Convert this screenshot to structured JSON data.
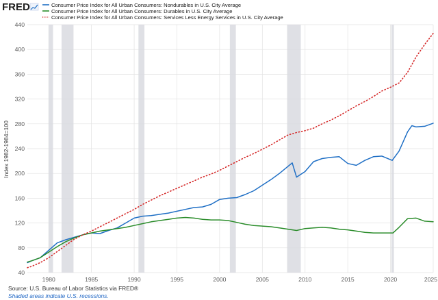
{
  "header": {
    "logo_text": "FRED",
    "logo_icon": "chart-line-icon"
  },
  "legend": {
    "items": [
      {
        "label": "Consumer Price Index for All Urban Consumers: Nondurables in U.S. City Average",
        "color": "#1f6fc5",
        "style": "solid"
      },
      {
        "label": "Consumer Price Index for All Urban Consumers: Durables in U.S. City Average",
        "color": "#2a8c2a",
        "style": "solid"
      },
      {
        "label": "Consumer Price Index for All Urban Consumers: Services Less Energy Services in U.S. City Average",
        "color": "#d52b2b",
        "style": "dotted"
      }
    ]
  },
  "footer": {
    "source": "Source: U.S. Bureau of Labor Statistics via FRED®",
    "note": "Shaded areas indicate U.S. recessions."
  },
  "chart_data": {
    "type": "line",
    "title": "",
    "xlabel": "",
    "ylabel": "Index 1982-1984=100",
    "xlim": [
      1977.5,
      2025.0
    ],
    "ylim": [
      40,
      440
    ],
    "yticks": [
      40,
      80,
      120,
      160,
      200,
      240,
      280,
      320,
      360,
      400,
      440
    ],
    "xticks": [
      1980,
      1985,
      1990,
      1995,
      2000,
      2005,
      2010,
      2015,
      2020,
      2025
    ],
    "grid": true,
    "legend_position": "top-left",
    "recessions": [
      [
        1980.0,
        1980.5
      ],
      [
        1981.5,
        1982.9
      ],
      [
        1990.5,
        1991.2
      ],
      [
        2001.2,
        2001.9
      ],
      [
        2007.9,
        2009.5
      ],
      [
        2020.1,
        2020.4
      ]
    ],
    "series": [
      {
        "name": "Consumer Price Index for All Urban Consumers: Nondurables in U.S. City Average",
        "color": "#1f6fc5",
        "style": "solid",
        "points": [
          [
            1977.5,
            56
          ],
          [
            1978,
            59
          ],
          [
            1979,
            64
          ],
          [
            1980,
            76
          ],
          [
            1981,
            88
          ],
          [
            1982,
            93
          ],
          [
            1983,
            97
          ],
          [
            1984,
            101
          ],
          [
            1985,
            104
          ],
          [
            1986,
            103
          ],
          [
            1987,
            108
          ],
          [
            1988,
            112
          ],
          [
            1989,
            120
          ],
          [
            1990,
            128
          ],
          [
            1991,
            131
          ],
          [
            1992,
            132
          ],
          [
            1993,
            134
          ],
          [
            1994,
            136
          ],
          [
            1995,
            139
          ],
          [
            1996,
            142
          ],
          [
            1997,
            145
          ],
          [
            1998,
            146
          ],
          [
            1999,
            150
          ],
          [
            2000,
            158
          ],
          [
            2001,
            160
          ],
          [
            2002,
            161
          ],
          [
            2003,
            166
          ],
          [
            2004,
            172
          ],
          [
            2005,
            181
          ],
          [
            2006,
            190
          ],
          [
            2007,
            200
          ],
          [
            2008.5,
            217
          ],
          [
            2009.0,
            194
          ],
          [
            2010,
            203
          ],
          [
            2011,
            219
          ],
          [
            2012,
            224
          ],
          [
            2013,
            226
          ],
          [
            2014,
            227
          ],
          [
            2015,
            216
          ],
          [
            2016,
            213
          ],
          [
            2017,
            221
          ],
          [
            2018,
            227
          ],
          [
            2019,
            228
          ],
          [
            2020.2,
            221
          ],
          [
            2021,
            236
          ],
          [
            2022,
            267
          ],
          [
            2022.5,
            277
          ],
          [
            2023,
            275
          ],
          [
            2024,
            276
          ],
          [
            2025,
            281
          ]
        ]
      },
      {
        "name": "Consumer Price Index for All Urban Consumers: Durables in U.S. City Average",
        "color": "#2a8c2a",
        "style": "solid",
        "points": [
          [
            1977.5,
            57
          ],
          [
            1978,
            59
          ],
          [
            1979,
            64
          ],
          [
            1980,
            73
          ],
          [
            1981,
            82
          ],
          [
            1982,
            90
          ],
          [
            1983,
            96
          ],
          [
            1984,
            101
          ],
          [
            1985,
            104
          ],
          [
            1986,
            107
          ],
          [
            1987,
            109
          ],
          [
            1988,
            111
          ],
          [
            1989,
            113
          ],
          [
            1990,
            116
          ],
          [
            1991,
            119
          ],
          [
            1992,
            122
          ],
          [
            1993,
            124
          ],
          [
            1994,
            126
          ],
          [
            1995,
            128
          ],
          [
            1996,
            129
          ],
          [
            1997,
            128
          ],
          [
            1998,
            126
          ],
          [
            1999,
            125
          ],
          [
            2000,
            125
          ],
          [
            2001,
            124
          ],
          [
            2002,
            121
          ],
          [
            2003,
            118
          ],
          [
            2004,
            116
          ],
          [
            2005,
            115
          ],
          [
            2006,
            114
          ],
          [
            2007,
            112
          ],
          [
            2008,
            110
          ],
          [
            2009,
            108
          ],
          [
            2010,
            111
          ],
          [
            2011,
            112
          ],
          [
            2012,
            113
          ],
          [
            2013,
            112
          ],
          [
            2014,
            110
          ],
          [
            2015,
            109
          ],
          [
            2016,
            107
          ],
          [
            2017,
            105
          ],
          [
            2018,
            104
          ],
          [
            2019,
            104
          ],
          [
            2020.3,
            104
          ],
          [
            2021,
            113
          ],
          [
            2022,
            127
          ],
          [
            2023,
            128
          ],
          [
            2024,
            123
          ],
          [
            2025,
            122
          ]
        ]
      },
      {
        "name": "Consumer Price Index for All Urban Consumers: Services Less Energy Services in U.S. City Average",
        "color": "#d52b2b",
        "style": "dotted",
        "points": [
          [
            1977.5,
            48
          ],
          [
            1978,
            50
          ],
          [
            1979,
            56
          ],
          [
            1980,
            64
          ],
          [
            1981,
            74
          ],
          [
            1982,
            84
          ],
          [
            1983,
            94
          ],
          [
            1984,
            101
          ],
          [
            1985,
            107
          ],
          [
            1986,
            114
          ],
          [
            1987,
            121
          ],
          [
            1988,
            128
          ],
          [
            1989,
            135
          ],
          [
            1990,
            142
          ],
          [
            1991,
            150
          ],
          [
            1992,
            157
          ],
          [
            1993,
            164
          ],
          [
            1994,
            170
          ],
          [
            1995,
            176
          ],
          [
            1996,
            182
          ],
          [
            1997,
            188
          ],
          [
            1998,
            194
          ],
          [
            1999,
            199
          ],
          [
            2000,
            205
          ],
          [
            2001,
            212
          ],
          [
            2002,
            219
          ],
          [
            2003,
            226
          ],
          [
            2004,
            232
          ],
          [
            2005,
            239
          ],
          [
            2006,
            246
          ],
          [
            2007,
            254
          ],
          [
            2008,
            262
          ],
          [
            2009,
            266
          ],
          [
            2010,
            269
          ],
          [
            2011,
            273
          ],
          [
            2012,
            280
          ],
          [
            2013,
            286
          ],
          [
            2014,
            293
          ],
          [
            2015,
            301
          ],
          [
            2016,
            309
          ],
          [
            2017,
            316
          ],
          [
            2018,
            324
          ],
          [
            2019,
            333
          ],
          [
            2020,
            339
          ],
          [
            2021,
            346
          ],
          [
            2022,
            363
          ],
          [
            2023,
            388
          ],
          [
            2024,
            408
          ],
          [
            2025,
            426
          ]
        ]
      }
    ]
  }
}
